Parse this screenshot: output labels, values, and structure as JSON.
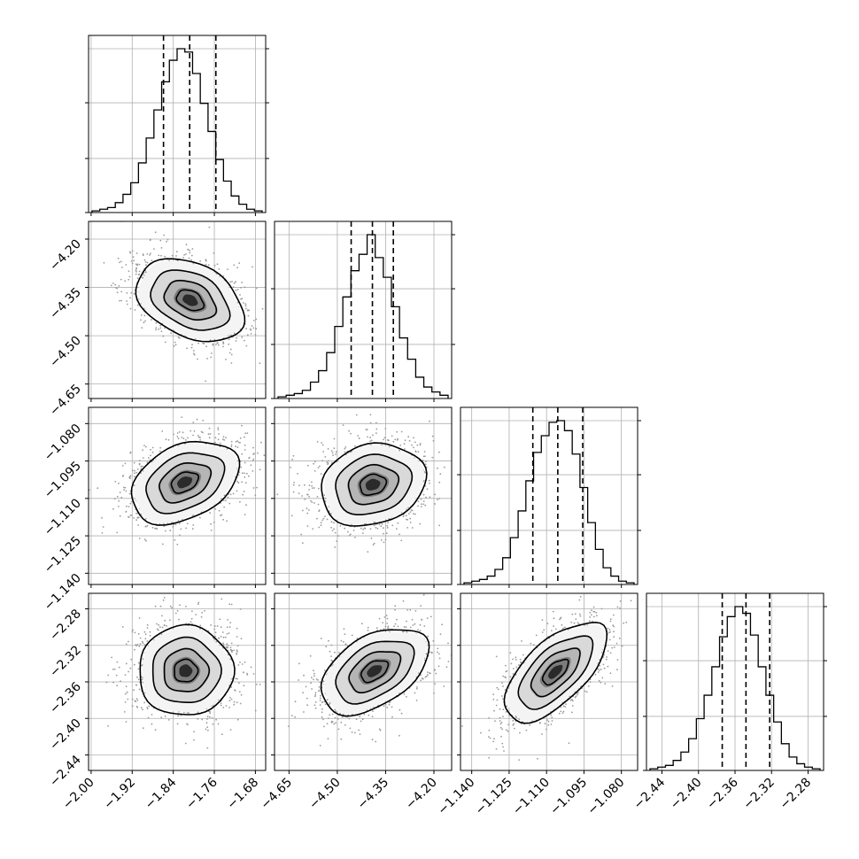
{
  "chart_data": {
    "type": "corner",
    "grid": true,
    "parameters": [
      {
        "ticks": [
          "-2.00",
          "-1.92",
          "-1.84",
          "-1.76",
          "-1.68"
        ],
        "range": [
          -2.005,
          -1.66
        ],
        "hist_values": [
          1,
          2,
          3,
          6,
          11,
          18,
          30,
          45,
          62,
          79,
          92,
          99,
          97,
          84,
          66,
          49,
          32,
          19,
          10,
          5,
          2,
          1
        ],
        "quantiles": [
          -1.859,
          -1.808,
          -1.757
        ],
        "show_y_ticks": false
      },
      {
        "ticks": [
          "-4.65",
          "-4.50",
          "-4.35",
          "-4.20"
        ],
        "range": [
          -4.695,
          -4.145
        ],
        "hist_values": [
          1,
          2,
          3,
          5,
          10,
          17,
          28,
          44,
          62,
          78,
          88,
          100,
          86,
          74,
          56,
          37,
          24,
          13,
          7,
          4,
          2
        ],
        "quantiles": [
          -4.457,
          -4.391,
          -4.326
        ],
        "show_y_ticks": true
      },
      {
        "ticks": [
          "-1.140",
          "-1.125",
          "-1.110",
          "-1.095",
          "-1.080"
        ],
        "range": [
          -1.1445,
          -1.0735
        ],
        "hist_values": [
          1,
          2,
          3,
          5,
          9,
          16,
          28,
          44,
          62,
          79,
          89,
          97,
          98,
          92,
          78,
          58,
          37,
          21,
          10,
          5,
          2,
          1
        ],
        "quantiles": [
          -1.1155,
          -1.1055,
          -1.0955
        ],
        "show_y_ticks": true
      },
      {
        "ticks": [
          "-2.44",
          "-2.40",
          "-2.36",
          "-2.32",
          "-2.28"
        ],
        "range": [
          -2.457,
          -2.263
        ],
        "hist_values": [
          1,
          2,
          3,
          6,
          11,
          19,
          31,
          45,
          62,
          80,
          92,
          98,
          94,
          81,
          62,
          45,
          29,
          16,
          8,
          4,
          2,
          1
        ],
        "quantiles": [
          -2.374,
          -2.348,
          -2.322
        ],
        "show_y_ticks": true
      }
    ],
    "pairs": [
      {
        "x": 0,
        "y": 1,
        "corr": -0.45,
        "center": [
          -1.807,
          -4.39
        ]
      },
      {
        "x": 0,
        "y": 2,
        "corr": 0.45,
        "center": [
          -1.818,
          -1.1035
        ]
      },
      {
        "x": 1,
        "y": 2,
        "corr": 0.3,
        "center": [
          -4.39,
          -1.1045
        ]
      },
      {
        "x": 0,
        "y": 3,
        "corr": 0.05,
        "center": [
          -1.816,
          -2.348
        ]
      },
      {
        "x": 1,
        "y": 3,
        "corr": 0.55,
        "center": [
          -4.385,
          -2.348
        ]
      },
      {
        "x": 2,
        "y": 3,
        "corr": 0.75,
        "center": [
          -1.1065,
          -2.349
        ]
      }
    ]
  }
}
